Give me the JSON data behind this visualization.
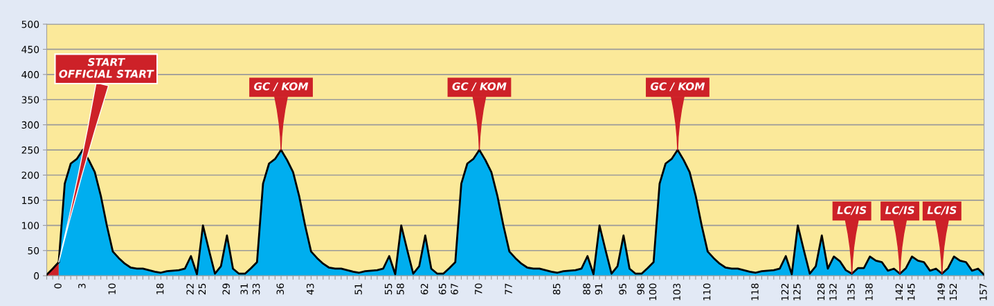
{
  "chart_data": {
    "type": "area",
    "categories": [
      null,
      null,
      "0",
      null,
      null,
      null,
      "3",
      null,
      null,
      null,
      null,
      "10",
      null,
      null,
      null,
      null,
      null,
      null,
      null,
      "18",
      null,
      null,
      null,
      null,
      "22",
      null,
      "25",
      null,
      null,
      null,
      "29",
      null,
      null,
      "31",
      null,
      "33",
      null,
      null,
      null,
      "36",
      null,
      null,
      null,
      null,
      "43",
      null,
      null,
      null,
      null,
      null,
      null,
      null,
      "51",
      null,
      null,
      null,
      null,
      "55",
      null,
      "58",
      null,
      null,
      null,
      "62",
      null,
      null,
      "65",
      null,
      "67",
      null,
      null,
      null,
      "70",
      null,
      null,
      null,
      null,
      "77",
      null,
      null,
      null,
      null,
      null,
      null,
      null,
      "85",
      null,
      null,
      null,
      null,
      "88",
      null,
      "91",
      null,
      null,
      null,
      "95",
      null,
      null,
      "98",
      null,
      "100",
      null,
      null,
      null,
      "103",
      null,
      null,
      null,
      null,
      "110",
      null,
      null,
      null,
      null,
      null,
      null,
      null,
      "118",
      null,
      null,
      null,
      null,
      "122",
      null,
      "125",
      null,
      null,
      null,
      "128",
      null,
      "132",
      null,
      null,
      "135",
      null,
      null,
      "138",
      null,
      null,
      null,
      null,
      "142",
      null,
      "145",
      null,
      null,
      null,
      null,
      "149",
      null,
      "152",
      null,
      null,
      null,
      null,
      "157"
    ],
    "series": [
      {
        "color": "#cd2128",
        "values": [
          2,
          14,
          27,
          null,
          null,
          null,
          null,
          null,
          null,
          null,
          null,
          null,
          null,
          null,
          null,
          null,
          null,
          null,
          null,
          null,
          null,
          null,
          null,
          null,
          null,
          null,
          null,
          null,
          null,
          null,
          null,
          null,
          null,
          null,
          null,
          null,
          null,
          null,
          null,
          null,
          null,
          null,
          null,
          null,
          null,
          null,
          null,
          null,
          null,
          null,
          null,
          null,
          null,
          null,
          null,
          null,
          null,
          null,
          null,
          null,
          null,
          null,
          null,
          null,
          null,
          null,
          null,
          null,
          null,
          null,
          null,
          null,
          null,
          null,
          null,
          null,
          null,
          null,
          null,
          null,
          null,
          null,
          null,
          null,
          null,
          null,
          null,
          null,
          null,
          null,
          null,
          null,
          null,
          null,
          null,
          null,
          null,
          null,
          null,
          null,
          null,
          null,
          null,
          null,
          null,
          null,
          null,
          null,
          null,
          null,
          null,
          null,
          null,
          null,
          null,
          null,
          null,
          null,
          null,
          null,
          null,
          null,
          null,
          null,
          null,
          null,
          null,
          null,
          null,
          null,
          null,
          null,
          null,
          null,
          null,
          null,
          null,
          null,
          null,
          null,
          null,
          null,
          null,
          null,
          null,
          null,
          null,
          null,
          null,
          null,
          null,
          null,
          null,
          null,
          null,
          null,
          null
        ]
      },
      {
        "color": "#00aeef",
        "values": [
          null,
          null,
          27,
          183,
          223,
          232,
          250,
          230,
          206,
          159,
          100,
          48,
          35,
          24,
          16,
          14,
          14,
          11,
          8,
          6,
          9,
          10,
          11,
          14,
          39,
          3,
          100,
          51,
          4,
          19,
          80,
          14,
          4,
          4,
          15,
          27,
          183,
          223,
          232,
          250,
          230,
          206,
          159,
          100,
          48,
          35,
          24,
          16,
          14,
          14,
          11,
          8,
          6,
          9,
          10,
          11,
          14,
          39,
          3,
          100,
          51,
          4,
          19,
          80,
          14,
          4,
          4,
          15,
          27,
          183,
          223,
          232,
          250,
          230,
          206,
          159,
          100,
          48,
          35,
          24,
          16,
          14,
          14,
          11,
          8,
          6,
          9,
          10,
          11,
          14,
          39,
          3,
          100,
          51,
          4,
          19,
          80,
          14,
          4,
          4,
          15,
          27,
          183,
          223,
          232,
          250,
          230,
          206,
          159,
          100,
          48,
          35,
          24,
          16,
          14,
          14,
          11,
          8,
          6,
          9,
          10,
          11,
          14,
          39,
          3,
          100,
          51,
          4,
          19,
          80,
          14,
          38,
          29,
          11,
          4,
          15,
          15,
          38,
          30,
          27,
          10,
          14,
          4,
          15,
          38,
          30,
          27,
          10,
          14,
          4,
          15,
          38,
          30,
          27,
          10,
          14,
          2
        ]
      }
    ],
    "ylim": [
      0,
      500
    ],
    "yticks": [
      0,
      50,
      100,
      150,
      200,
      250,
      300,
      350,
      400,
      450,
      500
    ],
    "grid": "y",
    "annotations": [
      {
        "text": "START\nOFFICIAL START",
        "x": "0",
        "y": 27
      },
      {
        "text": "GC / KOM",
        "x": "36",
        "y": 250
      },
      {
        "text": "GC / KOM",
        "x": "70",
        "y": 250
      },
      {
        "text": "GC / KOM",
        "x": "103",
        "y": 250
      },
      {
        "text": "LC/IS",
        "x": "135",
        "y": 4
      },
      {
        "text": "LC/IS",
        "x": "142",
        "y": 4
      },
      {
        "text": "LC/IS",
        "x": "149",
        "y": 4
      }
    ]
  }
}
